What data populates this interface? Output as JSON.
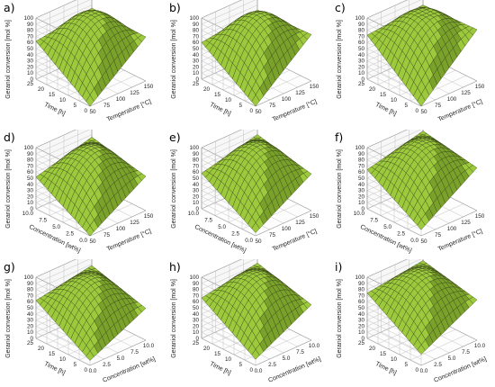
{
  "chart_data": [
    {
      "panel_label": "a)",
      "type": "surface",
      "zlabel": "Geraniol conversion [mol %]",
      "xlabel": "Temperature [°C]",
      "ylabel": "Time [h]",
      "x_ticks": [
        "50",
        "75",
        "100",
        "125",
        "150"
      ],
      "y_ticks": [
        "0",
        "5",
        "10",
        "15",
        "20",
        "25"
      ],
      "z_ticks": [
        "0",
        "10",
        "20",
        "30",
        "40",
        "50",
        "60",
        "70",
        "80",
        "90",
        "100"
      ],
      "zlim": [
        0,
        100
      ],
      "corners_z": {
        "front": 0,
        "left": 62,
        "right": 72,
        "back": 75
      },
      "peak_z": 98
    },
    {
      "panel_label": "b)",
      "type": "surface",
      "zlabel": "Geraniol conversion [mol %]",
      "xlabel": "Temperature [°C]",
      "ylabel": "Time [h]",
      "x_ticks": [
        "50",
        "75",
        "100",
        "125",
        "150"
      ],
      "y_ticks": [
        "0",
        "5",
        "10",
        "15",
        "20",
        "25"
      ],
      "z_ticks": [
        "0",
        "10",
        "20",
        "30",
        "40",
        "50",
        "60",
        "70",
        "80",
        "90",
        "100"
      ],
      "zlim": [
        0,
        100
      ],
      "corners_z": {
        "front": 0,
        "left": 60,
        "right": 76,
        "back": 72
      },
      "peak_z": 97
    },
    {
      "panel_label": "c)",
      "type": "surface",
      "zlabel": "Geraniol conversion [mol %]",
      "xlabel": "Temperature [°C]",
      "ylabel": "Time [h]",
      "x_ticks": [
        "50",
        "75",
        "100",
        "125",
        "150"
      ],
      "y_ticks": [
        "0",
        "5",
        "10",
        "15",
        "20",
        "25"
      ],
      "z_ticks": [
        "0",
        "10",
        "20",
        "30",
        "40",
        "50",
        "60",
        "70",
        "80",
        "90",
        "100"
      ],
      "zlim": [
        0,
        100
      ],
      "corners_z": {
        "front": 0,
        "left": 72,
        "right": 84,
        "back": 80
      },
      "peak_z": 99
    },
    {
      "panel_label": "d)",
      "type": "surface",
      "zlabel": "Geraniol conversion [mol %]",
      "xlabel": "Temperature [°C]",
      "ylabel": "Concentration [wt%]",
      "x_ticks": [
        "50",
        "75",
        "100",
        "125",
        "150"
      ],
      "y_ticks": [
        "0.0",
        "2.5",
        "5.0",
        "7.5",
        "10.0"
      ],
      "z_ticks": [
        "0",
        "10",
        "20",
        "30",
        "40",
        "50",
        "60",
        "70",
        "80",
        "90",
        "100"
      ],
      "zlim": [
        0,
        100
      ],
      "corners_z": {
        "front": 0,
        "left": 52,
        "right": 56,
        "back": 76
      },
      "peak_z": 88
    },
    {
      "panel_label": "e)",
      "type": "surface",
      "zlabel": "Geraniol conversion [mol %]",
      "xlabel": "Temperature [°C]",
      "ylabel": "Concentration [wt%]",
      "x_ticks": [
        "50",
        "75",
        "100",
        "125",
        "150"
      ],
      "y_ticks": [
        "0.0",
        "2.5",
        "5.0",
        "7.5",
        "10.0"
      ],
      "z_ticks": [
        "0",
        "10",
        "20",
        "30",
        "40",
        "50",
        "60",
        "70",
        "80",
        "90",
        "100"
      ],
      "zlim": [
        0,
        100
      ],
      "corners_z": {
        "front": 5,
        "left": 58,
        "right": 60,
        "back": 80
      },
      "peak_z": 93
    },
    {
      "panel_label": "f)",
      "type": "surface",
      "zlabel": "Geraniol conversion [mol %]",
      "xlabel": "Temperature [°C]",
      "ylabel": "Concentration [wt%]",
      "x_ticks": [
        "50",
        "75",
        "100",
        "125",
        "150"
      ],
      "y_ticks": [
        "0.0",
        "2.5",
        "5.0",
        "7.5",
        "10.0"
      ],
      "z_ticks": [
        "0",
        "10",
        "20",
        "30",
        "40",
        "50",
        "60",
        "70",
        "80",
        "90",
        "100"
      ],
      "zlim": [
        0,
        100
      ],
      "corners_z": {
        "front": 10,
        "left": 64,
        "right": 70,
        "back": 86
      },
      "peak_z": 96
    },
    {
      "panel_label": "g)",
      "type": "surface",
      "zlabel": "Geraniol conversion [mol %]",
      "xlabel": "Concentration [wt%]",
      "ylabel": "Time [h]",
      "x_ticks": [
        "0.0",
        "2.5",
        "5.0",
        "7.5",
        "10.0"
      ],
      "y_ticks": [
        "0",
        "5",
        "10",
        "15",
        "20",
        "25"
      ],
      "z_ticks": [
        "0",
        "10",
        "20",
        "30",
        "40",
        "50",
        "60",
        "70",
        "80",
        "90",
        "100"
      ],
      "zlim": [
        0,
        100
      ],
      "corners_z": {
        "front": 8,
        "left": 62,
        "right": 52,
        "back": 78
      },
      "peak_z": 88
    },
    {
      "panel_label": "h)",
      "type": "surface",
      "zlabel": "Geraniol conversion [mol %]",
      "xlabel": "Concentration [wt%]",
      "ylabel": "Time [h]",
      "x_ticks": [
        "0.0",
        "2.5",
        "5.0",
        "7.5",
        "10.0"
      ],
      "y_ticks": [
        "0",
        "5",
        "10",
        "15",
        "20",
        "25"
      ],
      "z_ticks": [
        "0",
        "10",
        "20",
        "30",
        "40",
        "50",
        "60",
        "70",
        "80",
        "90",
        "100"
      ],
      "zlim": [
        0,
        100
      ],
      "corners_z": {
        "front": 10,
        "left": 66,
        "right": 58,
        "back": 82
      },
      "peak_z": 94
    },
    {
      "panel_label": "i)",
      "type": "surface",
      "zlabel": "Geraniol conversion [mol %]",
      "xlabel": "Concentration [wt%]",
      "ylabel": "Time [h]",
      "x_ticks": [
        "0.0",
        "2.5",
        "5.0",
        "7.5",
        "10.0"
      ],
      "y_ticks": [
        "0",
        "5",
        "10",
        "15",
        "20",
        "25"
      ],
      "z_ticks": [
        "0",
        "10",
        "20",
        "30",
        "40",
        "50",
        "60",
        "70",
        "80",
        "90",
        "100"
      ],
      "zlim": [
        0,
        100
      ],
      "corners_z": {
        "front": 18,
        "left": 74,
        "right": 66,
        "back": 86
      },
      "peak_z": 96
    }
  ],
  "colors": {
    "surface": "#9dc93c",
    "surface_dark": "#7aa12a",
    "mesh": "#2c3a14",
    "grid": "#b5b5b5",
    "axis": "#555555"
  }
}
